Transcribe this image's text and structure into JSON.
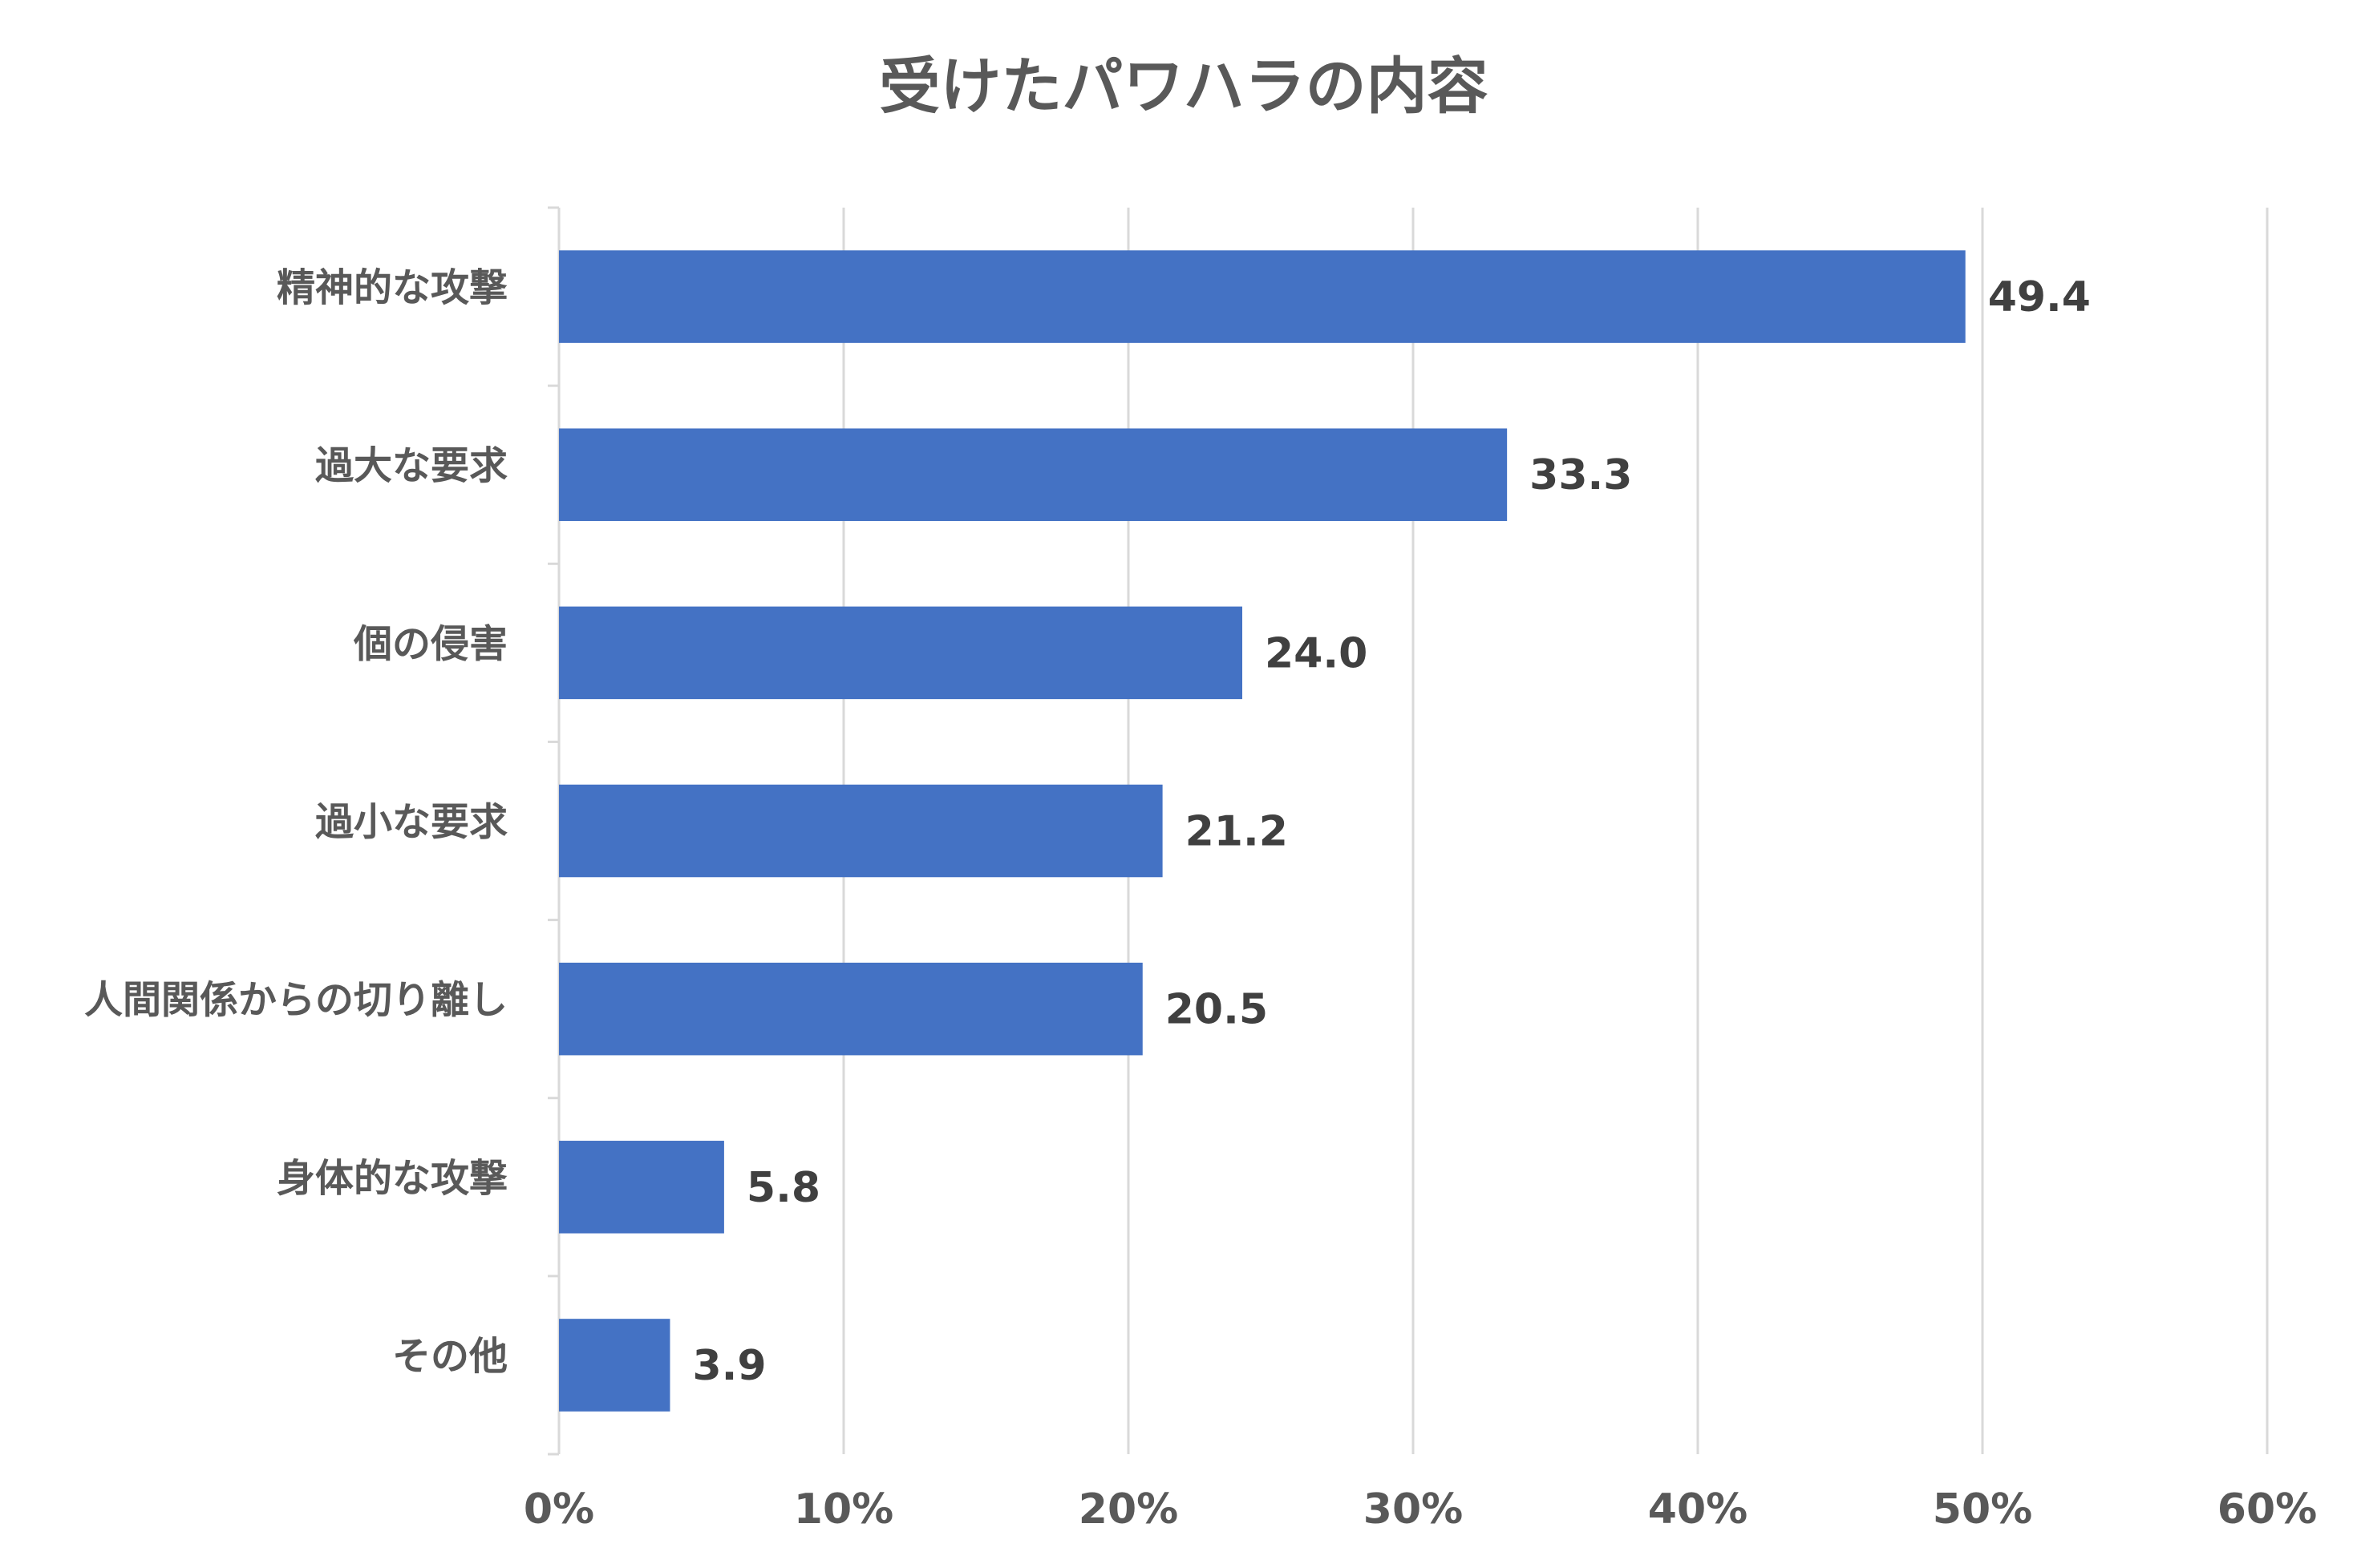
{
  "chart_data": {
    "type": "bar",
    "orientation": "horizontal",
    "title": "受けたパワハラの内容",
    "categories": [
      "精神的な攻撃",
      "過大な要求",
      "個の侵害",
      "過小な要求",
      "人間関係からの切り離し",
      "身体的な攻撃",
      "その他"
    ],
    "values": [
      49.4,
      33.3,
      24.0,
      21.2,
      20.5,
      5.8,
      3.9
    ],
    "value_labels": [
      "49.4",
      "33.3",
      "24.0",
      "21.2",
      "20.5",
      "5.8",
      "3.9"
    ],
    "color": "#4472c4",
    "xlim": [
      0,
      60
    ],
    "xticks": [
      {
        "value": 0,
        "label": "0%"
      },
      {
        "value": 10,
        "label": "10%"
      },
      {
        "value": 20,
        "label": "20%"
      },
      {
        "value": 30,
        "label": "30%"
      },
      {
        "value": 40,
        "label": "40%"
      },
      {
        "value": 50,
        "label": "50%"
      },
      {
        "value": 60,
        "label": "60%"
      }
    ],
    "grid": true
  }
}
